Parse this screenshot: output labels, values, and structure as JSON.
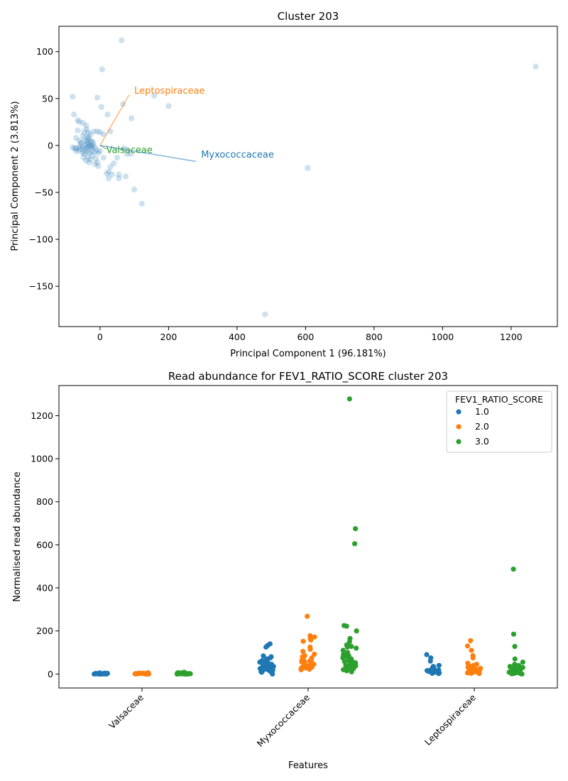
{
  "chart_data": [
    {
      "type": "scatter",
      "title": "Cluster 203",
      "xlabel": "Principal Component 1 (96.181%)",
      "ylabel": "Principal Component 2 (3.813%)",
      "xlim": [
        -120,
        1335
      ],
      "ylim": [
        -193,
        127
      ],
      "xticks": [
        0,
        200,
        400,
        600,
        800,
        1000,
        1200
      ],
      "yticks": [
        -150,
        -100,
        -50,
        0,
        50,
        100
      ],
      "ytick_labels": [
        "−150",
        "−100",
        "−50",
        "0",
        "50",
        "100"
      ],
      "point_color": "#1f77b4",
      "points": [
        [
          63,
          112
        ],
        [
          1272,
          84
        ],
        [
          6,
          81
        ],
        [
          -80,
          52
        ],
        [
          -8,
          51
        ],
        [
          158,
          53
        ],
        [
          67,
          44
        ],
        [
          4,
          41
        ],
        [
          200,
          42
        ],
        [
          -76,
          33
        ],
        [
          22,
          33
        ],
        [
          92,
          29
        ],
        [
          -65,
          27
        ],
        [
          -61,
          25
        ],
        [
          -50,
          24
        ],
        [
          -40,
          21
        ],
        [
          -40,
          17
        ],
        [
          -65,
          16
        ],
        [
          -47,
          14
        ],
        [
          -35,
          14
        ],
        [
          -28,
          12
        ],
        [
          -50,
          10
        ],
        [
          -40,
          9
        ],
        [
          -70,
          8
        ],
        [
          -35,
          7
        ],
        [
          -60,
          5
        ],
        [
          -45,
          5
        ],
        [
          -25,
          4
        ],
        [
          -55,
          3
        ],
        [
          -35,
          2
        ],
        [
          -80,
          -2
        ],
        [
          -70,
          -3
        ],
        [
          -62,
          -5
        ],
        [
          -55,
          -4
        ],
        [
          -45,
          -6
        ],
        [
          -38,
          -3
        ],
        [
          -25,
          -2
        ],
        [
          -20,
          0
        ],
        [
          -15,
          -2
        ],
        [
          -10,
          -5
        ],
        [
          -5,
          -8
        ],
        [
          0,
          -6
        ],
        [
          -30,
          -8
        ],
        [
          -45,
          -9
        ],
        [
          -35,
          -12
        ],
        [
          -28,
          -15
        ],
        [
          -22,
          -11
        ],
        [
          -12,
          -14
        ],
        [
          -8,
          -18
        ],
        [
          -5,
          -22
        ],
        [
          -15,
          -20
        ],
        [
          -40,
          -16
        ],
        [
          -48,
          -13
        ],
        [
          -32,
          -18
        ],
        [
          -18,
          15
        ],
        [
          -8,
          15
        ],
        [
          0,
          14
        ],
        [
          10,
          12
        ],
        [
          -30,
          0
        ],
        [
          -26,
          -1
        ],
        [
          -42,
          1
        ],
        [
          -50,
          -1
        ],
        [
          -60,
          -2
        ],
        [
          -70,
          -6
        ],
        [
          -74,
          -3
        ],
        [
          -52,
          -8
        ],
        [
          -36,
          -6
        ],
        [
          -24,
          -6
        ],
        [
          -16,
          -7
        ],
        [
          -58,
          1
        ],
        [
          -44,
          -3
        ],
        [
          -34,
          -1
        ],
        [
          -38,
          4
        ],
        [
          -20,
          3
        ],
        [
          -28,
          5
        ],
        [
          -32,
          9
        ],
        [
          30,
          15
        ],
        [
          50,
          -13
        ],
        [
          10,
          -13
        ],
        [
          70,
          -3
        ],
        [
          78,
          -9
        ],
        [
          90,
          -9
        ],
        [
          40,
          -19
        ],
        [
          30,
          -23
        ],
        [
          25,
          -28
        ],
        [
          20,
          -30
        ],
        [
          25,
          -35
        ],
        [
          35,
          -31
        ],
        [
          55,
          -31
        ],
        [
          55,
          -35
        ],
        [
          75,
          -33
        ],
        [
          100,
          -47
        ],
        [
          122,
          -62
        ],
        [
          606,
          -24
        ],
        [
          482,
          -180
        ]
      ],
      "loadings": [
        {
          "name": "Leptospiraceae",
          "x": 85,
          "y": 54,
          "color": "#ff7f0e",
          "label_x": 100,
          "label_y": 55
        },
        {
          "name": "Valsaceae",
          "x": 20,
          "y": -4,
          "color": "#2ca02c",
          "label_x": 18,
          "label_y": -8
        },
        {
          "name": "Myxococcaceae",
          "x": 280,
          "y": -17,
          "color": "#1f77b4",
          "label_x": 295,
          "label_y": -13
        }
      ]
    },
    {
      "type": "strip",
      "title": "Read abundance for FEV1_RATIO_SCORE cluster 203",
      "xlabel": "Features",
      "ylabel": "Normalised read abundance",
      "categories": [
        "Valsaceae",
        "Myxococcaceae",
        "Leptospiraceae"
      ],
      "ylim": [
        -65,
        1340
      ],
      "yticks": [
        0,
        200,
        400,
        600,
        800,
        1000,
        1200
      ],
      "legend": {
        "title": "FEV1_RATIO_SCORE",
        "position": "top-right"
      },
      "series": [
        {
          "name": "1.0",
          "color": "#1f77b4",
          "values": [
            [
              0,
              0,
              0,
              0,
              0,
              1,
              1,
              1,
              2,
              2,
              2,
              3,
              3,
              4,
              5,
              1,
              0,
              2,
              1,
              0
            ],
            [
              140,
              132,
              125,
              84,
              80,
              75,
              70,
              65,
              60,
              55,
              52,
              50,
              48,
              45,
              43,
              40,
              38,
              35,
              33,
              30,
              28,
              25,
              22,
              18,
              15,
              12,
              8,
              0,
              62,
              58,
              47,
              36,
              27,
              20,
              10
            ],
            [
              90,
              75,
              60,
              40,
              35,
              30,
              28,
              25,
              22,
              20,
              18,
              15,
              12,
              10,
              8,
              5,
              3,
              2,
              30,
              26,
              24,
              16
            ]
          ]
        },
        {
          "name": "2.0",
          "color": "#ff7f0e",
          "values": [
            [
              0,
              0,
              0,
              0,
              1,
              1,
              2,
              2,
              3,
              4,
              5,
              6,
              3,
              2,
              1,
              0,
              1
            ],
            [
              268,
              178,
              172,
              165,
              158,
              152,
              125,
              115,
              105,
              92,
              85,
              80,
              75,
              70,
              65,
              60,
              55,
              50,
              45,
              40,
              38,
              35,
              32,
              30,
              28,
              25,
              22,
              20,
              62,
              58,
              48,
              42,
              36
            ],
            [
              155,
              130,
              110,
              85,
              75,
              50,
              45,
              40,
              35,
              30,
              28,
              25,
              22,
              20,
              18,
              15,
              12,
              10,
              8,
              5,
              3,
              2,
              32,
              26,
              16
            ]
          ]
        },
        {
          "name": "3.0",
          "color": "#2ca02c",
          "values": [
            [
              0,
              0,
              0,
              0,
              0,
              1,
              1,
              1,
              2,
              2,
              3,
              3,
              4,
              5,
              6,
              8,
              2,
              1,
              0,
              1,
              0
            ],
            [
              1278,
              675,
              605,
              225,
              222,
              200,
              165,
              150,
              135,
              130,
              128,
              125,
              120,
              110,
              100,
              95,
              90,
              85,
              80,
              75,
              70,
              65,
              62,
              60,
              58,
              55,
              52,
              50,
              48,
              45,
              42,
              40,
              38,
              35,
              32,
              30,
              28,
              25,
              22,
              20,
              15,
              10
            ],
            [
              487,
              185,
              128,
              70,
              55,
              45,
              40,
              38,
              35,
              32,
              30,
              28,
              25,
              22,
              20,
              18,
              15,
              12,
              10,
              8,
              5,
              3,
              2,
              0,
              30,
              26,
              24,
              16,
              14,
              12,
              10,
              8,
              6,
              4,
              2,
              1,
              36,
              34
            ]
          ]
        }
      ]
    }
  ]
}
